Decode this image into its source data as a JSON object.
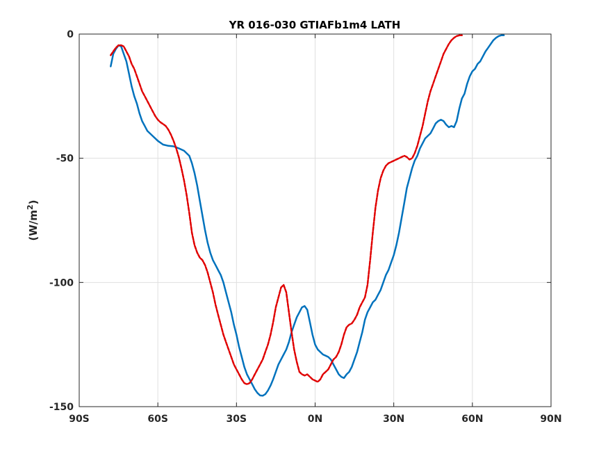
{
  "chart_data": {
    "type": "line",
    "title": "YR 016-030 GTIAFb1m4 LATH",
    "xlabel": "",
    "ylabel_main": "(W/m",
    "ylabel_sup": "2",
    "ylabel_close": ")",
    "xlim": [
      -90,
      90
    ],
    "ylim": [
      -150,
      0
    ],
    "grid": true,
    "x_ticks": [
      {
        "value": -90,
        "label": "90S"
      },
      {
        "value": -60,
        "label": "60S"
      },
      {
        "value": -30,
        "label": "30S"
      },
      {
        "value": 0,
        "label": "0N"
      },
      {
        "value": 30,
        "label": "30N"
      },
      {
        "value": 60,
        "label": "60N"
      },
      {
        "value": 90,
        "label": "90N"
      }
    ],
    "y_ticks": [
      {
        "value": 0,
        "label": "0"
      },
      {
        "value": -50,
        "label": "-50"
      },
      {
        "value": -100,
        "label": "-100"
      },
      {
        "value": -150,
        "label": "-150"
      }
    ],
    "series": [
      {
        "color": "#0072BD",
        "style": "solid",
        "points": [
          [
            -78,
            -13
          ],
          [
            -77,
            -8
          ],
          [
            -76,
            -6
          ],
          [
            -75,
            -4.5
          ],
          [
            -74,
            -5
          ],
          [
            -73,
            -8
          ],
          [
            -72,
            -11
          ],
          [
            -71,
            -16
          ],
          [
            -70,
            -21
          ],
          [
            -69,
            -25
          ],
          [
            -68,
            -28
          ],
          [
            -67,
            -32
          ],
          [
            -66,
            -35
          ],
          [
            -65,
            -37
          ],
          [
            -64,
            -39
          ],
          [
            -62,
            -41
          ],
          [
            -60,
            -43
          ],
          [
            -58,
            -44.5
          ],
          [
            -56,
            -45
          ],
          [
            -54,
            -45.2
          ],
          [
            -52,
            -46
          ],
          [
            -50,
            -47
          ],
          [
            -48,
            -49
          ],
          [
            -47,
            -52
          ],
          [
            -46,
            -56
          ],
          [
            -45,
            -61
          ],
          [
            -44,
            -67
          ],
          [
            -43,
            -73
          ],
          [
            -42,
            -79
          ],
          [
            -41,
            -84
          ],
          [
            -40,
            -88
          ],
          [
            -39,
            -91
          ],
          [
            -38,
            -93
          ],
          [
            -37,
            -95
          ],
          [
            -36,
            -97
          ],
          [
            -35,
            -100
          ],
          [
            -34,
            -104
          ],
          [
            -33,
            -108
          ],
          [
            -32,
            -112
          ],
          [
            -31,
            -117
          ],
          [
            -30,
            -121
          ],
          [
            -29,
            -126
          ],
          [
            -28,
            -130
          ],
          [
            -27,
            -134
          ],
          [
            -26,
            -137
          ],
          [
            -25,
            -139
          ],
          [
            -24,
            -141
          ],
          [
            -23,
            -143
          ],
          [
            -22,
            -144.5
          ],
          [
            -21,
            -145.5
          ],
          [
            -20,
            -145.6
          ],
          [
            -19,
            -145
          ],
          [
            -18,
            -143.5
          ],
          [
            -17,
            -141.5
          ],
          [
            -16,
            -139
          ],
          [
            -15,
            -136
          ],
          [
            -14,
            -133
          ],
          [
            -13,
            -131
          ],
          [
            -12,
            -129
          ],
          [
            -11,
            -127
          ],
          [
            -10,
            -124
          ],
          [
            -9,
            -120
          ],
          [
            -8,
            -117
          ],
          [
            -7,
            -114
          ],
          [
            -6,
            -112
          ],
          [
            -5,
            -110
          ],
          [
            -4,
            -109.5
          ],
          [
            -3,
            -111
          ],
          [
            -2,
            -116
          ],
          [
            -1,
            -121
          ],
          [
            0,
            -125
          ],
          [
            1,
            -127
          ],
          [
            2,
            -128
          ],
          [
            3,
            -129
          ],
          [
            4,
            -129.5
          ],
          [
            5,
            -130
          ],
          [
            6,
            -131
          ],
          [
            7,
            -133
          ],
          [
            8,
            -135
          ],
          [
            9,
            -137
          ],
          [
            10,
            -138
          ],
          [
            11,
            -138.5
          ],
          [
            12,
            -137
          ],
          [
            13,
            -136
          ],
          [
            14,
            -134
          ],
          [
            15,
            -131
          ],
          [
            16,
            -128
          ],
          [
            17,
            -124
          ],
          [
            18,
            -120
          ],
          [
            19,
            -115
          ],
          [
            20,
            -112
          ],
          [
            21,
            -110
          ],
          [
            22,
            -108
          ],
          [
            23,
            -107
          ],
          [
            24,
            -105
          ],
          [
            25,
            -103
          ],
          [
            26,
            -100
          ],
          [
            27,
            -97
          ],
          [
            28,
            -95
          ],
          [
            29,
            -92
          ],
          [
            30,
            -89
          ],
          [
            31,
            -85
          ],
          [
            32,
            -80
          ],
          [
            33,
            -74
          ],
          [
            34,
            -68
          ],
          [
            35,
            -62
          ],
          [
            36,
            -58
          ],
          [
            37,
            -54
          ],
          [
            38,
            -51
          ],
          [
            39,
            -49
          ],
          [
            40,
            -46
          ],
          [
            41,
            -44
          ],
          [
            42,
            -42
          ],
          [
            43,
            -41
          ],
          [
            44,
            -40
          ],
          [
            45,
            -38
          ],
          [
            46,
            -36
          ],
          [
            47,
            -35
          ],
          [
            48,
            -34.5
          ],
          [
            49,
            -35
          ],
          [
            50,
            -36.5
          ],
          [
            51,
            -37.5
          ],
          [
            52,
            -37
          ],
          [
            53,
            -37.5
          ],
          [
            54,
            -35
          ],
          [
            55,
            -30
          ],
          [
            56,
            -26
          ],
          [
            57,
            -24
          ],
          [
            58,
            -20
          ],
          [
            59,
            -17
          ],
          [
            60,
            -15
          ],
          [
            61,
            -14
          ],
          [
            62,
            -12
          ],
          [
            63,
            -11
          ],
          [
            64,
            -9
          ],
          [
            65,
            -7
          ],
          [
            66,
            -5.5
          ],
          [
            67,
            -4
          ],
          [
            68,
            -2.5
          ],
          [
            69,
            -1.5
          ],
          [
            70,
            -0.8
          ],
          [
            71,
            -0.5
          ],
          [
            72,
            -0.5
          ]
        ]
      },
      {
        "color": "#E00000",
        "style": "dashed",
        "points": [
          [
            -78,
            -8.5
          ],
          [
            -77,
            -7
          ],
          [
            -76,
            -5.5
          ],
          [
            -75,
            -4.5
          ],
          [
            -74,
            -4.5
          ],
          [
            -73,
            -5
          ],
          [
            -72,
            -7
          ],
          [
            -71,
            -9
          ],
          [
            -70,
            -12
          ],
          [
            -69,
            -14
          ],
          [
            -68,
            -17
          ],
          [
            -67,
            -20
          ],
          [
            -66,
            -23
          ],
          [
            -65,
            -25
          ],
          [
            -64,
            -27
          ],
          [
            -63,
            -29
          ],
          [
            -62,
            -31
          ],
          [
            -61,
            -33
          ],
          [
            -60,
            -34.5
          ],
          [
            -59,
            -35.5
          ],
          [
            -58,
            -36.2
          ],
          [
            -57,
            -37
          ],
          [
            -56,
            -38.5
          ],
          [
            -55,
            -40.5
          ],
          [
            -54,
            -43
          ],
          [
            -53,
            -46
          ],
          [
            -52,
            -49.5
          ],
          [
            -51,
            -54
          ],
          [
            -50,
            -59
          ],
          [
            -49,
            -65
          ],
          [
            -48,
            -72
          ],
          [
            -47,
            -80
          ],
          [
            -46,
            -85
          ],
          [
            -45,
            -88
          ],
          [
            -44,
            -90
          ],
          [
            -43,
            -91
          ],
          [
            -42,
            -93
          ],
          [
            -41,
            -96
          ],
          [
            -40,
            -100
          ],
          [
            -39,
            -104
          ],
          [
            -38,
            -109
          ],
          [
            -37,
            -113
          ],
          [
            -36,
            -117
          ],
          [
            -35,
            -121
          ],
          [
            -34,
            -124
          ],
          [
            -33,
            -127
          ],
          [
            -32,
            -130
          ],
          [
            -31,
            -133
          ],
          [
            -30,
            -135
          ],
          [
            -29,
            -137
          ],
          [
            -28,
            -139
          ],
          [
            -27,
            -140.5
          ],
          [
            -26,
            -141
          ],
          [
            -25,
            -140.5
          ],
          [
            -24,
            -139
          ],
          [
            -23,
            -137
          ],
          [
            -22,
            -135
          ],
          [
            -21,
            -133
          ],
          [
            -20,
            -131
          ],
          [
            -19,
            -128
          ],
          [
            -18,
            -125
          ],
          [
            -17,
            -121
          ],
          [
            -16,
            -116
          ],
          [
            -15,
            -110
          ],
          [
            -14,
            -106
          ],
          [
            -13,
            -102
          ],
          [
            -12,
            -101
          ],
          [
            -11,
            -104
          ],
          [
            -10,
            -112
          ],
          [
            -9,
            -120
          ],
          [
            -8,
            -127
          ],
          [
            -7,
            -132
          ],
          [
            -6,
            -136
          ],
          [
            -5,
            -137
          ],
          [
            -4,
            -137.5
          ],
          [
            -3,
            -137
          ],
          [
            -2,
            -138
          ],
          [
            -1,
            -139
          ],
          [
            0,
            -139.5
          ],
          [
            1,
            -140
          ],
          [
            2,
            -139
          ],
          [
            3,
            -137
          ],
          [
            4,
            -136
          ],
          [
            5,
            -135
          ],
          [
            6,
            -133
          ],
          [
            7,
            -131
          ],
          [
            8,
            -130
          ],
          [
            9,
            -128
          ],
          [
            10,
            -125
          ],
          [
            11,
            -121
          ],
          [
            12,
            -118
          ],
          [
            13,
            -117
          ],
          [
            14,
            -116.5
          ],
          [
            15,
            -115
          ],
          [
            16,
            -113
          ],
          [
            17,
            -110
          ],
          [
            18,
            -108
          ],
          [
            19,
            -106
          ],
          [
            20,
            -101
          ],
          [
            21,
            -91
          ],
          [
            22,
            -80
          ],
          [
            23,
            -70
          ],
          [
            24,
            -63
          ],
          [
            25,
            -58
          ],
          [
            26,
            -55
          ],
          [
            27,
            -53
          ],
          [
            28,
            -52
          ],
          [
            29,
            -51.5
          ],
          [
            30,
            -51
          ],
          [
            31,
            -50.5
          ],
          [
            32,
            -50
          ],
          [
            33,
            -49.5
          ],
          [
            34,
            -49
          ],
          [
            35,
            -49.5
          ],
          [
            36,
            -50.5
          ],
          [
            37,
            -50
          ],
          [
            38,
            -48
          ],
          [
            39,
            -45
          ],
          [
            40,
            -41
          ],
          [
            41,
            -37
          ],
          [
            42,
            -32
          ],
          [
            43,
            -27
          ],
          [
            44,
            -23
          ],
          [
            45,
            -20
          ],
          [
            46,
            -17
          ],
          [
            47,
            -14
          ],
          [
            48,
            -11
          ],
          [
            49,
            -8
          ],
          [
            50,
            -6
          ],
          [
            51,
            -4
          ],
          [
            52,
            -2.5
          ],
          [
            53,
            -1.5
          ],
          [
            54,
            -0.8
          ],
          [
            55,
            -0.5
          ],
          [
            56,
            -0.5
          ]
        ]
      }
    ]
  }
}
